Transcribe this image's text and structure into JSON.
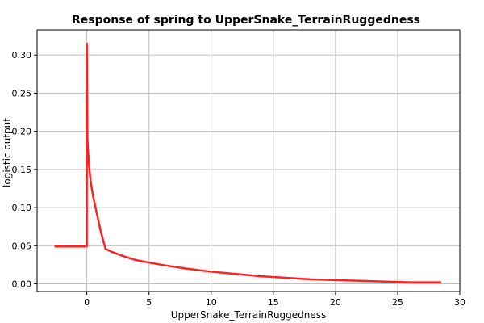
{
  "chart_data": {
    "type": "line",
    "title": "Response of spring to UpperSnake_TerrainRuggedness",
    "xlabel": "UpperSnake_TerrainRuggedness",
    "ylabel": "logistic output",
    "xlim": [
      -4,
      30
    ],
    "ylim": [
      -0.01,
      0.333
    ],
    "xticks": [
      0,
      5,
      10,
      15,
      20,
      25,
      30
    ],
    "yticks": [
      0.0,
      0.05,
      0.1,
      0.15,
      0.2,
      0.25,
      0.3
    ],
    "ytick_labels": [
      "0.00",
      "0.05",
      "0.10",
      "0.15",
      "0.20",
      "0.25",
      "0.30"
    ],
    "grid": true,
    "series": [
      {
        "color": "#ff2020",
        "x": [
          -2.6,
          -0.01,
          0.0,
          0.0,
          0.05,
          0.15,
          0.3,
          0.5,
          0.7,
          0.9,
          1.1,
          1.3,
          1.5,
          2.0,
          3.0,
          4.0,
          5.0,
          6.0,
          8.0,
          10.0,
          12.0,
          14.0,
          16.0,
          18.0,
          20.0,
          22.0,
          24.0,
          26.0,
          28.5
        ],
        "y": [
          0.049,
          0.049,
          0.049,
          0.315,
          0.19,
          0.16,
          0.135,
          0.115,
          0.1,
          0.085,
          0.07,
          0.058,
          0.046,
          0.042,
          0.036,
          0.031,
          0.028,
          0.025,
          0.02,
          0.016,
          0.013,
          0.01,
          0.008,
          0.006,
          0.005,
          0.004,
          0.003,
          0.002,
          0.002
        ]
      }
    ]
  }
}
